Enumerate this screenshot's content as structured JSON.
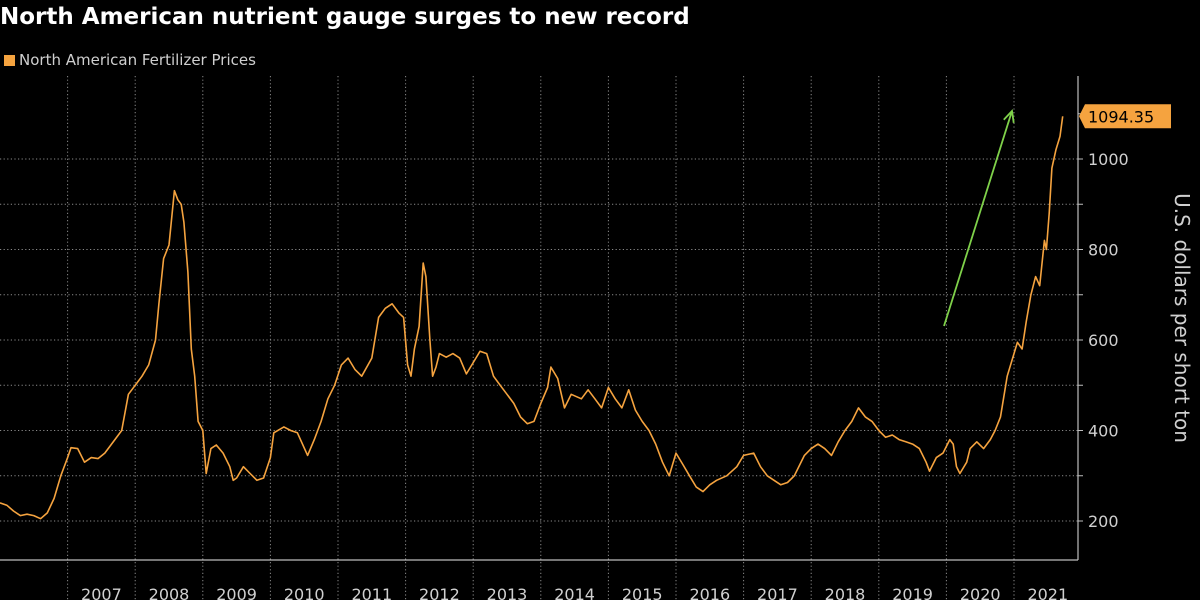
{
  "chart_data": {
    "type": "line",
    "title": "North American nutrient gauge surges to new record",
    "ylabel": "U.S. dollars per short ton",
    "xlabel": "",
    "ylim": [
      120,
      1180
    ],
    "yticks": [
      200,
      400,
      600,
      800,
      1000
    ],
    "x_tick_labels": [
      "2007",
      "2008",
      "2009",
      "2010",
      "2011",
      "2012",
      "2013",
      "2014",
      "2015",
      "2016",
      "2017",
      "2018",
      "2019",
      "2020",
      "2021"
    ],
    "legend_position": "top-left",
    "grid": true,
    "last_value_label": "1094.35",
    "annotation": "green upward arrow",
    "series": [
      {
        "name": "North American Fertilizer Prices",
        "color": "#f5a33f",
        "points": [
          [
            2006.0,
            240
          ],
          [
            2006.1,
            235
          ],
          [
            2006.2,
            222
          ],
          [
            2006.3,
            212
          ],
          [
            2006.4,
            215
          ],
          [
            2006.5,
            212
          ],
          [
            2006.6,
            205
          ],
          [
            2006.7,
            218
          ],
          [
            2006.8,
            250
          ],
          [
            2006.9,
            300
          ],
          [
            2007.0,
            340
          ],
          [
            2007.05,
            362
          ],
          [
            2007.15,
            360
          ],
          [
            2007.25,
            330
          ],
          [
            2007.35,
            340
          ],
          [
            2007.45,
            338
          ],
          [
            2007.55,
            350
          ],
          [
            2007.7,
            380
          ],
          [
            2007.8,
            400
          ],
          [
            2007.9,
            480
          ],
          [
            2008.0,
            500
          ],
          [
            2008.1,
            520
          ],
          [
            2008.2,
            545
          ],
          [
            2008.3,
            600
          ],
          [
            2008.35,
            680
          ],
          [
            2008.42,
            780
          ],
          [
            2008.5,
            810
          ],
          [
            2008.58,
            930
          ],
          [
            2008.63,
            910
          ],
          [
            2008.68,
            900
          ],
          [
            2008.72,
            860
          ],
          [
            2008.78,
            750
          ],
          [
            2008.83,
            580
          ],
          [
            2008.88,
            520
          ],
          [
            2008.93,
            420
          ],
          [
            2009.0,
            400
          ],
          [
            2009.05,
            305
          ],
          [
            2009.12,
            360
          ],
          [
            2009.2,
            368
          ],
          [
            2009.3,
            350
          ],
          [
            2009.4,
            320
          ],
          [
            2009.45,
            290
          ],
          [
            2009.5,
            295
          ],
          [
            2009.6,
            320
          ],
          [
            2009.7,
            305
          ],
          [
            2009.8,
            290
          ],
          [
            2009.9,
            295
          ],
          [
            2010.0,
            340
          ],
          [
            2010.05,
            395
          ],
          [
            2010.2,
            408
          ],
          [
            2010.3,
            400
          ],
          [
            2010.4,
            395
          ],
          [
            2010.55,
            345
          ],
          [
            2010.65,
            380
          ],
          [
            2010.75,
            420
          ],
          [
            2010.85,
            470
          ],
          [
            2010.95,
            500
          ],
          [
            2011.05,
            545
          ],
          [
            2011.15,
            560
          ],
          [
            2011.25,
            535
          ],
          [
            2011.35,
            520
          ],
          [
            2011.5,
            560
          ],
          [
            2011.6,
            650
          ],
          [
            2011.7,
            670
          ],
          [
            2011.8,
            680
          ],
          [
            2011.9,
            660
          ],
          [
            2011.97,
            650
          ],
          [
            2012.03,
            545
          ],
          [
            2012.08,
            520
          ],
          [
            2012.13,
            580
          ],
          [
            2012.2,
            630
          ],
          [
            2012.26,
            770
          ],
          [
            2012.3,
            740
          ],
          [
            2012.36,
            600
          ],
          [
            2012.4,
            520
          ],
          [
            2012.45,
            540
          ],
          [
            2012.5,
            570
          ],
          [
            2012.6,
            562
          ],
          [
            2012.7,
            570
          ],
          [
            2012.8,
            560
          ],
          [
            2012.9,
            525
          ],
          [
            2013.0,
            550
          ],
          [
            2013.1,
            575
          ],
          [
            2013.2,
            570
          ],
          [
            2013.3,
            520
          ],
          [
            2013.4,
            500
          ],
          [
            2013.5,
            480
          ],
          [
            2013.6,
            460
          ],
          [
            2013.7,
            430
          ],
          [
            2013.8,
            415
          ],
          [
            2013.9,
            420
          ],
          [
            2014.0,
            460
          ],
          [
            2014.1,
            495
          ],
          [
            2014.15,
            540
          ],
          [
            2014.25,
            515
          ],
          [
            2014.35,
            450
          ],
          [
            2014.45,
            480
          ],
          [
            2014.6,
            470
          ],
          [
            2014.7,
            490
          ],
          [
            2014.8,
            470
          ],
          [
            2014.9,
            450
          ],
          [
            2015.0,
            495
          ],
          [
            2015.1,
            470
          ],
          [
            2015.2,
            450
          ],
          [
            2015.3,
            490
          ],
          [
            2015.4,
            445
          ],
          [
            2015.5,
            420
          ],
          [
            2015.6,
            400
          ],
          [
            2015.7,
            370
          ],
          [
            2015.8,
            330
          ],
          [
            2015.9,
            300
          ],
          [
            2016.0,
            350
          ],
          [
            2016.1,
            325
          ],
          [
            2016.2,
            300
          ],
          [
            2016.3,
            275
          ],
          [
            2016.4,
            265
          ],
          [
            2016.5,
            280
          ],
          [
            2016.6,
            290
          ],
          [
            2016.75,
            300
          ],
          [
            2016.9,
            320
          ],
          [
            2017.0,
            345
          ],
          [
            2017.15,
            350
          ],
          [
            2017.25,
            320
          ],
          [
            2017.35,
            300
          ],
          [
            2017.45,
            290
          ],
          [
            2017.55,
            280
          ],
          [
            2017.65,
            285
          ],
          [
            2017.75,
            300
          ],
          [
            2017.9,
            345
          ],
          [
            2018.0,
            360
          ],
          [
            2018.1,
            370
          ],
          [
            2018.2,
            360
          ],
          [
            2018.3,
            345
          ],
          [
            2018.4,
            375
          ],
          [
            2018.5,
            400
          ],
          [
            2018.6,
            420
          ],
          [
            2018.7,
            450
          ],
          [
            2018.8,
            430
          ],
          [
            2018.9,
            420
          ],
          [
            2019.0,
            400
          ],
          [
            2019.1,
            385
          ],
          [
            2019.2,
            390
          ],
          [
            2019.3,
            380
          ],
          [
            2019.4,
            375
          ],
          [
            2019.5,
            370
          ],
          [
            2019.6,
            360
          ],
          [
            2019.7,
            330
          ],
          [
            2019.75,
            310
          ],
          [
            2019.85,
            340
          ],
          [
            2019.95,
            350
          ],
          [
            2020.05,
            380
          ],
          [
            2020.1,
            370
          ],
          [
            2020.15,
            320
          ],
          [
            2020.2,
            305
          ],
          [
            2020.3,
            330
          ],
          [
            2020.35,
            360
          ],
          [
            2020.45,
            375
          ],
          [
            2020.55,
            360
          ],
          [
            2020.65,
            380
          ],
          [
            2020.72,
            400
          ],
          [
            2020.8,
            430
          ],
          [
            2020.9,
            520
          ],
          [
            2021.0,
            570
          ],
          [
            2021.05,
            595
          ],
          [
            2021.12,
            580
          ],
          [
            2021.18,
            640
          ],
          [
            2021.25,
            700
          ],
          [
            2021.32,
            740
          ],
          [
            2021.38,
            720
          ],
          [
            2021.45,
            820
          ],
          [
            2021.48,
            800
          ],
          [
            2021.52,
            880
          ],
          [
            2021.56,
            980
          ],
          [
            2021.62,
            1020
          ],
          [
            2021.68,
            1050
          ],
          [
            2021.72,
            1094.35
          ]
        ]
      }
    ]
  }
}
